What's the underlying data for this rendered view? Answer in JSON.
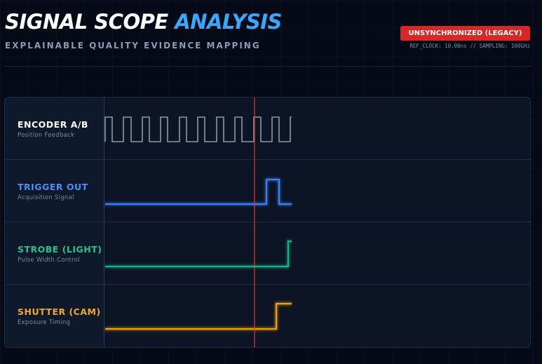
{
  "header": {
    "title_part1": "SIGNAL SCOPE",
    "title_part2": "ANALYSIS",
    "subtitle": "EXPLAINABLE QUALITY EVIDENCE MAPPING"
  },
  "status": {
    "badge": "UNSYNCHRONIZED (LEGACY)",
    "ref_clock": "REF_CLOCK: 10.00ns // SAMPLING: 100GHz"
  },
  "channels": [
    {
      "name": "ENCODER A/B",
      "desc": "Position Feedback",
      "color": "#ffffff"
    },
    {
      "name": "TRIGGER OUT",
      "desc": "Acquisition Signal",
      "color": "#4d8df5"
    },
    {
      "name": "STROBE (LIGHT)",
      "desc": "Pulse Width Control",
      "color": "#27c48a"
    },
    {
      "name": "SHUTTER (CAM)",
      "desc": "Exposure Timing",
      "color": "#f5a623"
    }
  ],
  "colors": {
    "encoder": "#8c99a8",
    "trigger": "#3b82f6",
    "strobe": "#10b981",
    "shutter": "#f59e0b",
    "marker": "#e53935"
  }
}
